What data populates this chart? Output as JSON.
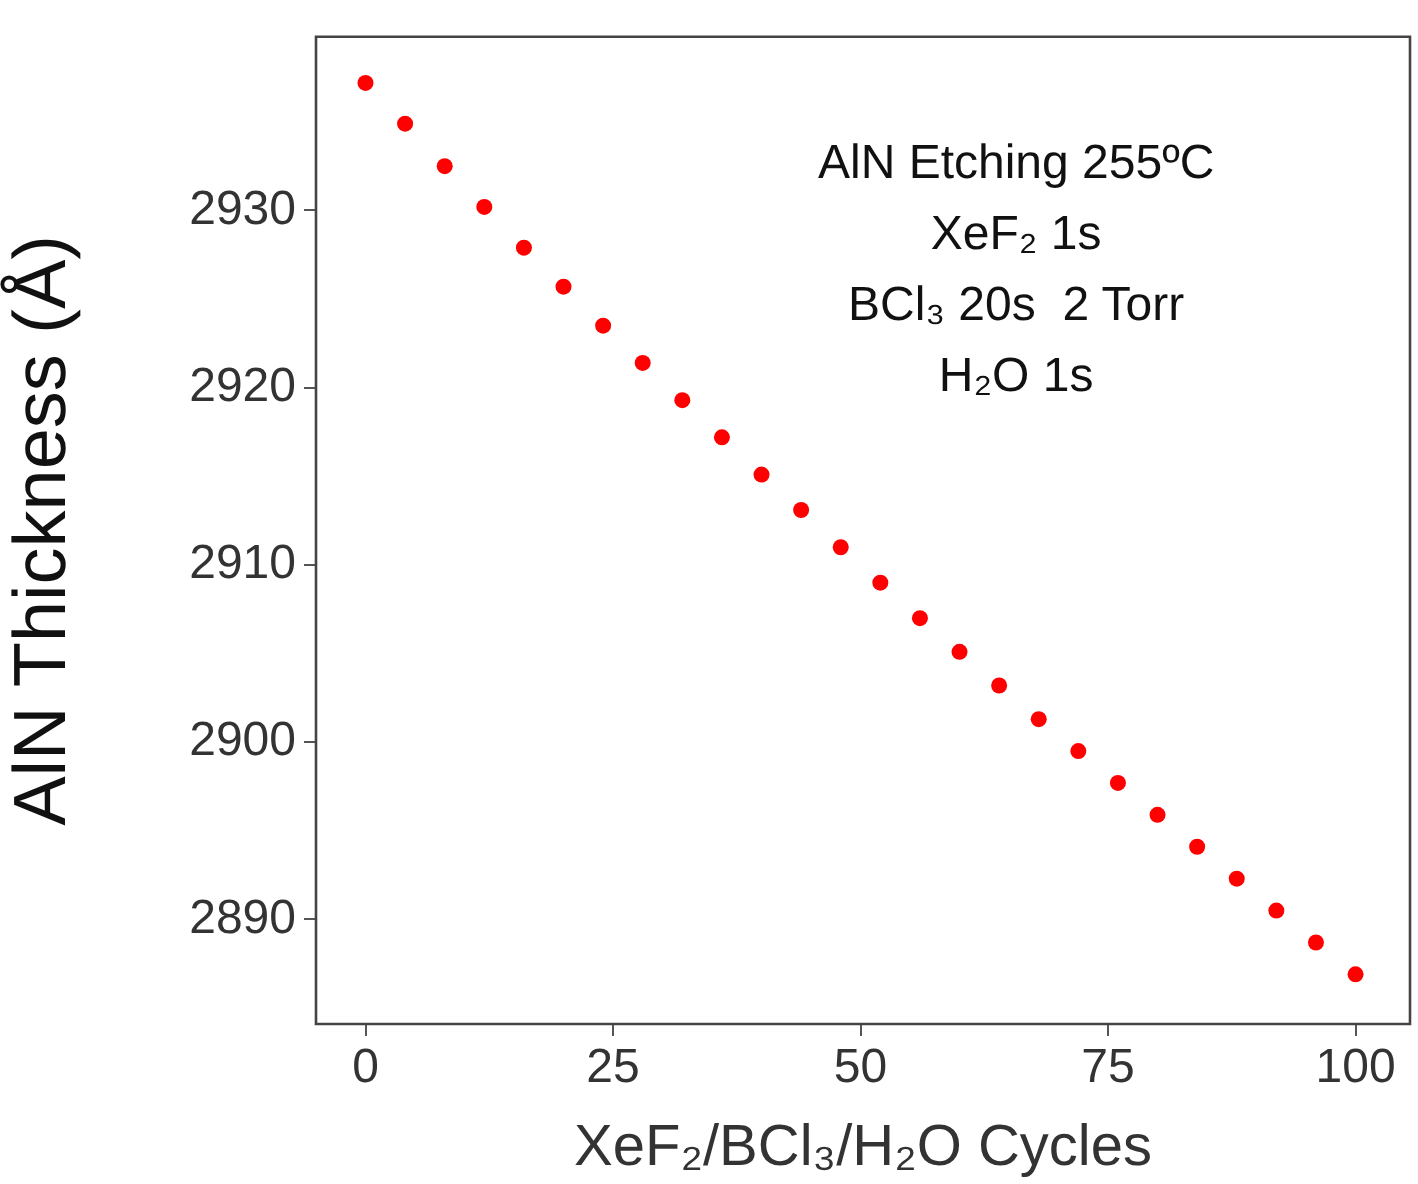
{
  "chart_data": {
    "type": "scatter",
    "xlabel": "XeF₂/BCl₃/H₂O Cycles",
    "ylabel": "AlN Thickness (Å)",
    "annotations": [
      "AlN Etching 255ºC",
      "XeF₂ 1s",
      "BCl₃ 20s  2 Torr",
      "H₂O 1s"
    ],
    "x": [
      0,
      4,
      8,
      12,
      16,
      20,
      24,
      28,
      32,
      36,
      40,
      44,
      48,
      52,
      56,
      60,
      64,
      68,
      72,
      76,
      80,
      84,
      88,
      92,
      96,
      100
    ],
    "series": [
      {
        "color": "#ff0000",
        "values": [
          2937.2,
          2934.9,
          2932.5,
          2930.2,
          2927.9,
          2925.7,
          2923.5,
          2921.4,
          2919.3,
          2917.2,
          2915.1,
          2913.1,
          2911.0,
          2909.0,
          2907.0,
          2905.1,
          2903.2,
          2901.3,
          2899.5,
          2897.7,
          2895.9,
          2894.1,
          2892.3,
          2890.5,
          2888.7,
          2886.9
        ]
      }
    ],
    "xlim": [
      -5,
      105.5
    ],
    "ylim": [
      2884.1,
      2939.8
    ],
    "xticks": [
      0,
      25,
      50,
      75,
      100
    ],
    "yticks": [
      2890,
      2900,
      2910,
      2920,
      2930
    ],
    "grid": false,
    "legend": false,
    "marker": "circle"
  }
}
